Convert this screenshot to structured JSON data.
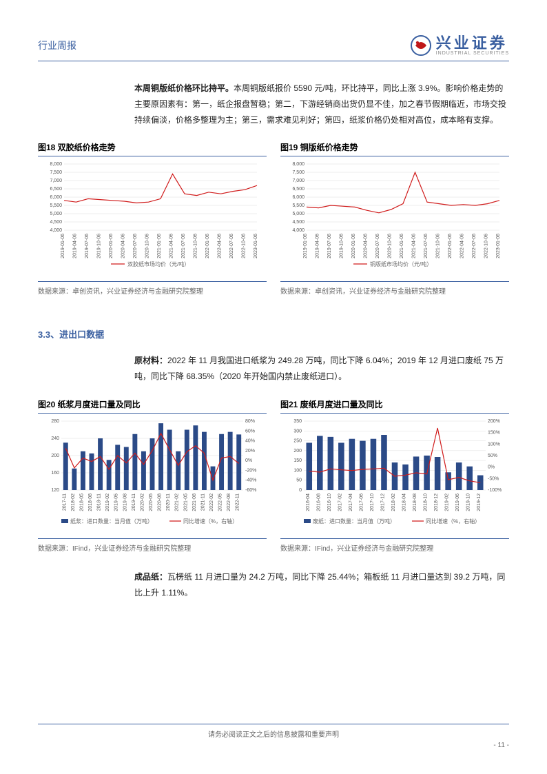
{
  "header": {
    "left": "行业周报",
    "logo_cn": "兴业证券",
    "logo_en": "INDUSTRIAL SECURITIES"
  },
  "para1_bold": "本周铜版纸价格环比持平。",
  "para1_rest": "本周铜版纸报价 5590 元/吨，环比持平，同比上涨 3.9%。影响价格走势的主要原因素有：第一，纸企报盘暂稳；第二，下游经销商出货仍显不佳，加之春节假期临近，市场交投持续偏淡，价格多整理为主；第三，需求难见利好；第四，纸浆价格仍处相对高位，成本略有支撑。",
  "chart18": {
    "title": "图18 双胶纸价格走势",
    "type": "line",
    "ylim": [
      4000,
      8000
    ],
    "yticks": [
      4000,
      4500,
      5000,
      5500,
      6000,
      6500,
      7000,
      7500,
      8000
    ],
    "xticks": [
      "2019-01-06",
      "2019-04-06",
      "2019-07-06",
      "2019-10-06",
      "2020-01-06",
      "2020-04-06",
      "2020-07-06",
      "2020-10-06",
      "2021-01-06",
      "2021-04-06",
      "2021-07-06",
      "2021-10-06",
      "2022-01-06",
      "2022-04-06",
      "2022-07-06",
      "2022-10-06",
      "2023-01-06"
    ],
    "values": [
      5800,
      5700,
      5900,
      5850,
      5800,
      5750,
      5650,
      5700,
      5900,
      7400,
      6200,
      6100,
      6300,
      6200,
      6350,
      6450,
      6700
    ],
    "line_color": "#d01b1b",
    "legend": "双胶纸市场均价（元/吨）",
    "source": "数据来源：卓创资讯，兴业证券经济与金融研究院整理"
  },
  "chart19": {
    "title": "图19 铜版纸价格走势",
    "type": "line",
    "ylim": [
      4000,
      8000
    ],
    "yticks": [
      4000,
      4500,
      5000,
      5500,
      6000,
      6500,
      7000,
      7500,
      8000
    ],
    "xticks": [
      "2019-01-06",
      "2019-04-06",
      "2019-07-06",
      "2019-10-06",
      "2020-01-06",
      "2020-04-06",
      "2020-07-06",
      "2020-10-06",
      "2021-01-06",
      "2021-04-06",
      "2021-07-06",
      "2021-10-06",
      "2022-01-06",
      "2022-04-06",
      "2022-07-06",
      "2022-10-06",
      "2023-01-06"
    ],
    "values": [
      5400,
      5350,
      5500,
      5450,
      5400,
      5200,
      5050,
      5250,
      5600,
      7500,
      5700,
      5600,
      5500,
      5550,
      5500,
      5600,
      5800
    ],
    "line_color": "#d01b1b",
    "legend": "铜版纸市场均价（元/吨）",
    "source": "数据来源：卓创资讯，兴业证券经济与金融研究院整理"
  },
  "section33": "3.3、进出口数据",
  "para2_bold": "原材料：",
  "para2_rest": "2022 年 11 月我国进口纸浆为 249.28 万吨，同比下降 6.04%；2019 年 12 月进口废纸 75 万吨，同比下降 68.35%（2020 年开始国内禁止废纸进口）。",
  "chart20": {
    "title": "图20 纸浆月度进口量及同比",
    "type": "bar-line",
    "ylim_left": [
      120,
      280
    ],
    "yticks_left": [
      120,
      160,
      200,
      240,
      280
    ],
    "ylim_right": [
      -60,
      80
    ],
    "yticks_right": [
      -60,
      -40,
      -20,
      0,
      20,
      40,
      60,
      80
    ],
    "xticks": [
      "2017-11",
      "2018-02",
      "2018-05",
      "2018-08",
      "2018-11",
      "2019-02",
      "2019-05",
      "2019-08",
      "2019-11",
      "2020-02",
      "2020-05",
      "2020-08",
      "2020-11",
      "2021-02",
      "2021-05",
      "2021-08",
      "2021-11",
      "2022-02",
      "2022-05",
      "2022-08",
      "2022-11"
    ],
    "bars": [
      230,
      170,
      210,
      205,
      240,
      190,
      225,
      220,
      250,
      210,
      240,
      275,
      260,
      210,
      260,
      270,
      255,
      175,
      250,
      255,
      249
    ],
    "line": [
      25,
      -15,
      5,
      -2,
      8,
      -18,
      10,
      -5,
      15,
      -8,
      20,
      55,
      22,
      -10,
      18,
      30,
      15,
      -40,
      5,
      8,
      -6
    ],
    "bar_color": "#2b4a87",
    "line_color": "#d01b1b",
    "legend_bar": "纸浆：进口数量：当月值（万吨）",
    "legend_line": "同比增速（%，右轴）",
    "source": "数据来源：IFind，兴业证券经济与金融研究院整理"
  },
  "chart21": {
    "title": "图21 废纸月度进口量及同比",
    "type": "bar-line",
    "ylim_left": [
      0,
      350
    ],
    "yticks_left": [
      0,
      50,
      100,
      150,
      200,
      250,
      300,
      350
    ],
    "ylim_right": [
      -100,
      200
    ],
    "yticks_right": [
      -100,
      -50,
      0,
      50,
      100,
      150,
      200
    ],
    "xticks": [
      "2016-04",
      "2016-08",
      "2016-10",
      "2017-02",
      "2017-04",
      "2017-06",
      "2017-10",
      "2017-12",
      "2018-02",
      "2018-04",
      "2018-08",
      "2018-10",
      "2018-12",
      "2019-02",
      "2019-06",
      "2019-10",
      "2019-12"
    ],
    "bars": [
      240,
      275,
      270,
      240,
      260,
      250,
      260,
      280,
      140,
      130,
      170,
      175,
      168,
      90,
      140,
      120,
      75
    ],
    "line": [
      -18,
      -22,
      -8,
      -12,
      -15,
      -10,
      -8,
      -5,
      -40,
      -35,
      -25,
      -30,
      170,
      -55,
      -45,
      -60,
      -68
    ],
    "bar_color": "#2b4a87",
    "line_color": "#d01b1b",
    "legend_bar": "废纸：进口数量：当月值（万吨）",
    "legend_line": "同比增速（%，右轴）",
    "source": "数据来源：IFind，兴业证券经济与金融研究院整理"
  },
  "para3_bold": "成品纸：",
  "para3_rest": "瓦楞纸 11 月进口量为 24.2 万吨，同比下降 25.44%；箱板纸 11 月进口量达到 39.2 万吨，同比上升 1.11%。",
  "footer": "请务必阅读正文之后的信息披露和重要声明",
  "page_num": "- 11 -"
}
